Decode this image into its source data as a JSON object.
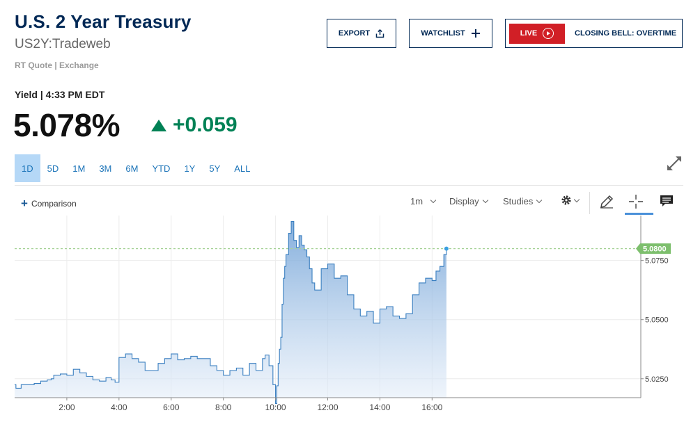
{
  "header": {
    "title": "U.S. 2 Year Treasury",
    "symbol": "US2Y:Tradeweb",
    "quote_source": "RT Quote | Exchange"
  },
  "actions": {
    "export_label": "EXPORT",
    "export_icon": "share-upload-icon",
    "watchlist_label": "WATCHLIST",
    "watchlist_icon": "plus-icon",
    "live_label": "LIVE",
    "live_icon": "play-circle-icon",
    "live_show": "CLOSING BELL: OVERTIME"
  },
  "quote": {
    "label": "Yield | 4:33 PM EDT",
    "price": "5.078%",
    "change": "+0.059",
    "direction_icon": "triangle-up-icon"
  },
  "ranges": [
    {
      "label": "1D",
      "active": true
    },
    {
      "label": "5D",
      "active": false
    },
    {
      "label": "1M",
      "active": false
    },
    {
      "label": "3M",
      "active": false
    },
    {
      "label": "6M",
      "active": false
    },
    {
      "label": "YTD",
      "active": false
    },
    {
      "label": "1Y",
      "active": false
    },
    {
      "label": "5Y",
      "active": false
    },
    {
      "label": "ALL",
      "active": false
    }
  ],
  "toolbar": {
    "comparison_label": "Comparison",
    "interval_label": "1m",
    "display_label": "Display",
    "studies_label": "Studies",
    "icons": [
      "expand-icon",
      "gear-icon",
      "pencil-icon",
      "crosshair-icon",
      "comment-icon"
    ]
  },
  "colors": {
    "brand_navy": "#002855",
    "positive": "#008155",
    "live_red": "#d11f26",
    "line": "#3a7fc0",
    "last_price_tag": "#7dbf6d"
  },
  "chart_data": {
    "type": "area",
    "x_tick_labels": [
      "2:00",
      "4:00",
      "6:00",
      "8:00",
      "10:00",
      "12:00",
      "14:00",
      "16:00"
    ],
    "y_tick_labels": [
      "5.0750",
      "5.0500",
      "5.0250"
    ],
    "ylim": [
      5.017,
      5.094
    ],
    "xlim_hours": [
      0.0,
      24.0
    ],
    "last_value_label": "5.0800",
    "last_value": 5.08,
    "grid": true,
    "series": [
      {
        "x": [
          0.0,
          0.05,
          0.25,
          0.5,
          0.75,
          1.0,
          1.25,
          1.4,
          1.5,
          1.75,
          2.0,
          2.25,
          2.5,
          2.75,
          3.0,
          3.25,
          3.5,
          3.7,
          3.85,
          4.0,
          4.25,
          4.5,
          4.75,
          5.0,
          5.25,
          5.5,
          5.75,
          6.0,
          6.25,
          6.5,
          6.75,
          7.0,
          7.25,
          7.5,
          7.75,
          8.0,
          8.25,
          8.5,
          8.75,
          9.0,
          9.25,
          9.5,
          9.6,
          9.75,
          9.9,
          10.0,
          10.05,
          10.1,
          10.15,
          10.2,
          10.25,
          10.3,
          10.35,
          10.4,
          10.5,
          10.6,
          10.7,
          10.8,
          10.9,
          11.0,
          11.1,
          11.2,
          11.3,
          11.4,
          11.5,
          11.75,
          12.0,
          12.25,
          12.5,
          12.75,
          13.0,
          13.25,
          13.5,
          13.75,
          14.0,
          14.25,
          14.5,
          14.75,
          15.0,
          15.25,
          15.5,
          15.75,
          16.0,
          16.15,
          16.3,
          16.45,
          16.55
        ],
        "values": [
          5.0225,
          5.021,
          5.0225,
          5.0225,
          5.023,
          5.024,
          5.0245,
          5.025,
          5.0265,
          5.027,
          5.0265,
          5.029,
          5.0275,
          5.026,
          5.0245,
          5.024,
          5.0255,
          5.0245,
          5.0235,
          5.034,
          5.0355,
          5.0335,
          5.032,
          5.0285,
          5.0285,
          5.0315,
          5.0335,
          5.0355,
          5.033,
          5.0335,
          5.0345,
          5.0335,
          5.0335,
          5.0305,
          5.0285,
          5.0265,
          5.0285,
          5.0295,
          5.0265,
          5.0315,
          5.0285,
          5.0335,
          5.035,
          5.0305,
          5.0225,
          5.0145,
          5.022,
          5.0315,
          5.0375,
          5.0425,
          5.0565,
          5.0675,
          5.0725,
          5.0775,
          5.0865,
          5.0915,
          5.0835,
          5.0805,
          5.0855,
          5.0815,
          5.0795,
          5.0765,
          5.0715,
          5.0655,
          5.0625,
          5.0715,
          5.0735,
          5.0675,
          5.0685,
          5.0605,
          5.0545,
          5.0515,
          5.0535,
          5.0485,
          5.0545,
          5.0555,
          5.0515,
          5.0505,
          5.0525,
          5.0605,
          5.0655,
          5.0675,
          5.0665,
          5.0705,
          5.0725,
          5.0775,
          5.08
        ]
      }
    ]
  }
}
